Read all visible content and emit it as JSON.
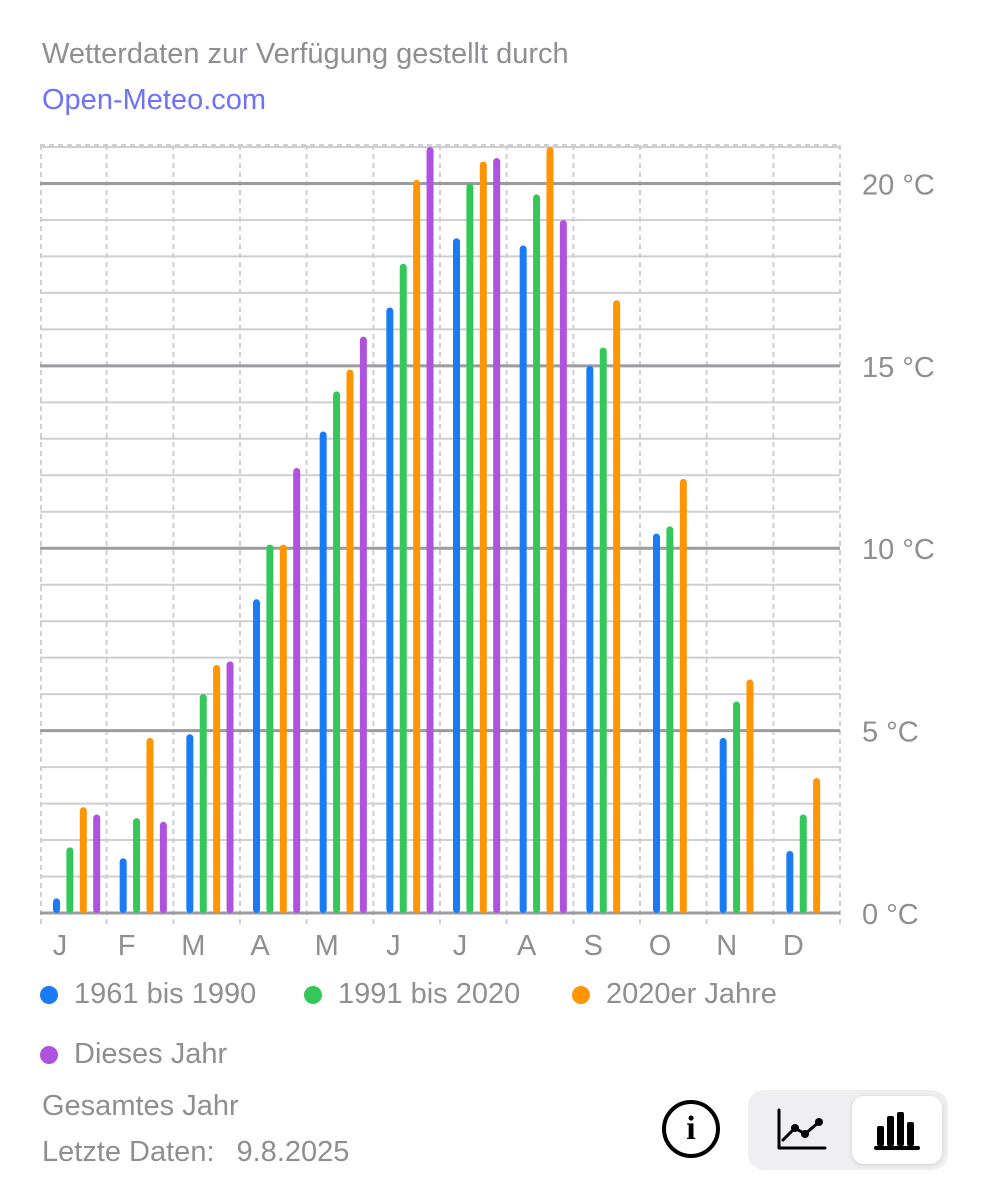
{
  "credit": {
    "text": "Wetterdaten zur Verfügung gestellt durch",
    "link": "Open-Meteo.com"
  },
  "chart_data": {
    "type": "bar",
    "categories": [
      "J",
      "F",
      "M",
      "A",
      "M",
      "J",
      "J",
      "A",
      "S",
      "O",
      "N",
      "D"
    ],
    "ylim": [
      0,
      21
    ],
    "y_ticks": [
      {
        "value": 0,
        "label": "0 °C"
      },
      {
        "value": 5,
        "label": "5 °C"
      },
      {
        "value": 10,
        "label": "10 °C"
      },
      {
        "value": 15,
        "label": "15 °C"
      },
      {
        "value": 20,
        "label": "20 °C"
      }
    ],
    "grid": true,
    "legend_position": "bottom",
    "series": [
      {
        "name": "1961 bis 1990",
        "color": "#1a7cf5",
        "values": [
          0.4,
          1.5,
          4.9,
          8.6,
          13.2,
          16.6,
          18.5,
          18.3,
          15.0,
          10.4,
          4.8,
          1.7
        ]
      },
      {
        "name": "1991 bis 2020",
        "color": "#34c759",
        "values": [
          1.8,
          2.6,
          6.0,
          10.1,
          14.3,
          17.8,
          20.0,
          19.7,
          15.5,
          10.6,
          5.8,
          2.7
        ]
      },
      {
        "name": "2020er Jahre",
        "color": "#ff9500",
        "values": [
          2.9,
          4.8,
          6.8,
          10.1,
          14.9,
          20.1,
          20.6,
          21.0,
          16.8,
          11.9,
          6.4,
          3.7
        ]
      },
      {
        "name": "Dieses Jahr",
        "color": "#af52de",
        "values": [
          2.7,
          2.5,
          6.9,
          12.2,
          15.8,
          21.0,
          20.7,
          19.0,
          null,
          null,
          null,
          null
        ]
      }
    ]
  },
  "footer": {
    "scope": "Gesamtes Jahr",
    "last_data_label": "Letzte Daten:",
    "last_data_value": "9.8.2025"
  },
  "controls": {
    "info_icon": "info-icon",
    "line_chart_icon": "line-chart-icon",
    "bar_chart_icon": "bar-chart-icon",
    "selected": "bar"
  }
}
